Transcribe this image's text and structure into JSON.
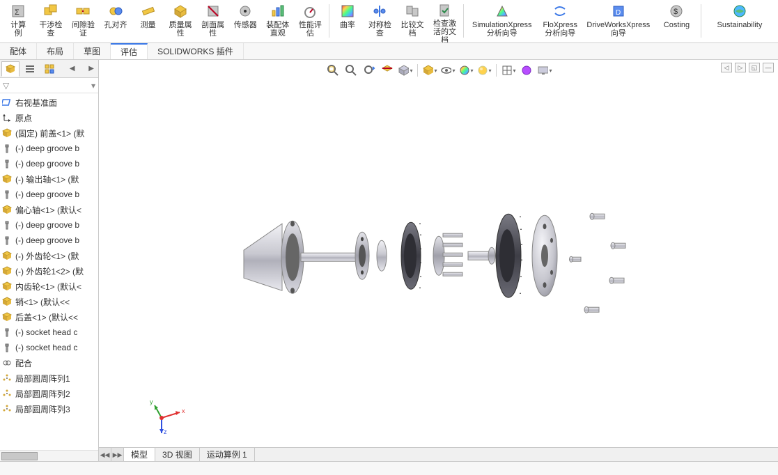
{
  "ribbon": {
    "buttons": [
      {
        "id": "calc",
        "label": "计算\n例",
        "icon": "calc",
        "w": "narrow"
      },
      {
        "id": "interference",
        "label": "干涉检查",
        "icon": "interf",
        "w": "narrow"
      },
      {
        "id": "clearance",
        "label": "间隙验证",
        "icon": "clear",
        "w": "narrow"
      },
      {
        "id": "holealign",
        "label": "孔对齐",
        "icon": "hole",
        "w": "narrow"
      },
      {
        "id": "measure",
        "label": "测量",
        "icon": "measure",
        "w": "narrow"
      },
      {
        "id": "massprops",
        "label": "质量属性",
        "icon": "mass",
        "w": "narrow"
      },
      {
        "id": "section",
        "label": "剖面属性",
        "icon": "sect",
        "w": "narrow"
      },
      {
        "id": "sensor",
        "label": "传感器",
        "icon": "sensor",
        "w": "narrow"
      },
      {
        "id": "asmviz",
        "label": "装配体直观",
        "icon": "asmviz",
        "w": "narrow"
      },
      {
        "id": "perf",
        "label": "性能评估",
        "icon": "perf",
        "w": "narrow"
      },
      {
        "sep": true
      },
      {
        "id": "curvature",
        "label": "曲率",
        "icon": "curv",
        "w": "narrow"
      },
      {
        "id": "symcheck",
        "label": "对称检查",
        "icon": "sym",
        "w": "narrow"
      },
      {
        "id": "compare",
        "label": "比较文档",
        "icon": "compare",
        "w": "narrow"
      },
      {
        "id": "checkdoc",
        "label": "检查激活的文档",
        "icon": "checkdoc",
        "w": "narrow"
      },
      {
        "sep": true
      },
      {
        "id": "simx",
        "label": "SimulationXpress\n分析向导",
        "icon": "simx",
        "w": "wide"
      },
      {
        "id": "flox",
        "label": "FloXpress\n分析向导",
        "icon": "flox",
        "w": "med"
      },
      {
        "id": "dwx",
        "label": "DriveWorksXpress\n向导",
        "icon": "dwx",
        "w": "wide"
      },
      {
        "id": "costing",
        "label": "Costing",
        "icon": "cost",
        "w": "med"
      },
      {
        "sep": true
      },
      {
        "id": "sustain",
        "label": "Sustainability",
        "icon": "sustain",
        "w": "wide"
      }
    ]
  },
  "cmdTabs": [
    {
      "label": "配体",
      "active": false
    },
    {
      "label": "布局",
      "active": false
    },
    {
      "label": "草图",
      "active": false
    },
    {
      "label": "评估",
      "active": true
    },
    {
      "label": "SOLIDWORKS 插件",
      "active": false
    }
  ],
  "treeTabs": [
    {
      "icon": "cube",
      "active": true
    },
    {
      "icon": "list",
      "active": false
    },
    {
      "icon": "cfg",
      "active": false
    }
  ],
  "tree": [
    {
      "icon": "plane",
      "label": "右视基准面"
    },
    {
      "icon": "origin",
      "label": "原点"
    },
    {
      "icon": "part-y",
      "label": "(固定) 前盖<1> (默"
    },
    {
      "icon": "screw",
      "label": "(-) deep groove b"
    },
    {
      "icon": "screw",
      "label": "(-) deep groove b"
    },
    {
      "icon": "part-y",
      "label": "(-) 输出轴<1> (默"
    },
    {
      "icon": "screw",
      "label": "(-) deep groove b"
    },
    {
      "icon": "part-y",
      "label": "偏心轴<1> (默认<"
    },
    {
      "icon": "screw",
      "label": "(-) deep groove b"
    },
    {
      "icon": "screw",
      "label": "(-) deep groove b"
    },
    {
      "icon": "part-y",
      "label": "(-) 外齿轮<1> (默"
    },
    {
      "icon": "part-y",
      "label": "(-) 外齿轮1<2> (默"
    },
    {
      "icon": "part-y",
      "label": "内齿轮<1> (默认<"
    },
    {
      "icon": "part-y",
      "label": "销<1> (默认<<"
    },
    {
      "icon": "part-y",
      "label": "后盖<1> (默认<<"
    },
    {
      "icon": "screw",
      "label": "(-) socket head c"
    },
    {
      "icon": "screw",
      "label": "(-) socket head c"
    },
    {
      "icon": "mates",
      "label": "配合"
    },
    {
      "icon": "pattern",
      "label": "局部圆周阵列1"
    },
    {
      "icon": "pattern",
      "label": "局部圆周阵列2"
    },
    {
      "icon": "pattern",
      "label": "局部圆周阵列3"
    }
  ],
  "viewToolbar": [
    {
      "icon": "zoomfit"
    },
    {
      "icon": "zoomarea"
    },
    {
      "icon": "prevview"
    },
    {
      "icon": "sectionview"
    },
    {
      "icon": "vieworient",
      "dd": true
    },
    {
      "sep": true
    },
    {
      "icon": "dispstyle",
      "dd": true
    },
    {
      "icon": "hideshow",
      "dd": true
    },
    {
      "icon": "editappear",
      "dd": true
    },
    {
      "icon": "applyscn",
      "dd": true
    },
    {
      "sep": true
    },
    {
      "icon": "viewset",
      "dd": true
    },
    {
      "icon": "render"
    },
    {
      "icon": "screen",
      "dd": true
    }
  ],
  "miniCtrl": [
    "◁",
    "▷",
    "◱",
    "—"
  ],
  "triad": {
    "x_label": "x",
    "y_label": "y",
    "z_label": "z",
    "x_color": "#e03030",
    "y_color": "#30a030",
    "z_color": "#3050e0"
  },
  "bottomTabs": [
    {
      "label": "模型",
      "active": true
    },
    {
      "label": "3D 视图",
      "active": false
    },
    {
      "label": "运动算例 1",
      "active": false
    }
  ],
  "status": {
    "left": ""
  },
  "model": {
    "note": "exploded cycloidal reducer — approximate geometry",
    "metal_light": "#e4e4e8",
    "metal_mid": "#b8b8c0",
    "metal_dark": "#8a8a94",
    "gear_dark": "#4a4a52",
    "gear_mid": "#6a6a74"
  }
}
